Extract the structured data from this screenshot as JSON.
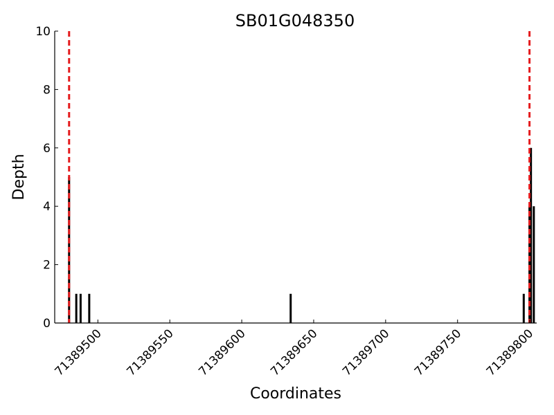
{
  "chart_data": {
    "type": "bar",
    "title": "SB01G048350",
    "xlabel": "Coordinates",
    "ylabel": "Depth",
    "xlim": [
      71389470,
      71389805
    ],
    "ylim": [
      0,
      10
    ],
    "xticks": [
      71389500,
      71389550,
      71389600,
      71389650,
      71389700,
      71389750,
      71389800
    ],
    "yticks": [
      0,
      2,
      4,
      6,
      8,
      10
    ],
    "grid": false,
    "bars": [
      {
        "x": 71389480,
        "value": 5
      },
      {
        "x": 71389485,
        "value": 1
      },
      {
        "x": 71389488,
        "value": 1
      },
      {
        "x": 71389494,
        "value": 1
      },
      {
        "x": 71389634,
        "value": 1
      },
      {
        "x": 71389796,
        "value": 1
      },
      {
        "x": 71389800,
        "value": 4
      },
      {
        "x": 71389801,
        "value": 6
      },
      {
        "x": 71389803,
        "value": 4
      }
    ],
    "markers": [
      {
        "x": 71389480,
        "color": "#e41a1c",
        "style": "dashed"
      },
      {
        "x": 71389800,
        "color": "#e41a1c",
        "style": "dashed"
      }
    ],
    "bar_color": "#000000",
    "marker_color": "#e41a1c"
  }
}
